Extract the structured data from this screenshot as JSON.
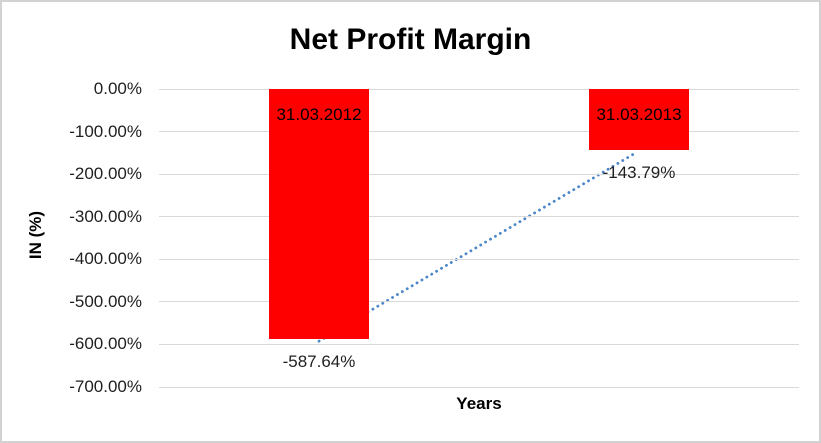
{
  "chart_data": {
    "type": "bar",
    "title": "Net Profit Margin",
    "xlabel": "Years",
    "ylabel": "IN (%)",
    "categories": [
      "31.03.2012",
      "31.03.2013"
    ],
    "values": [
      -587.64,
      -143.79
    ],
    "value_labels": [
      "-587.64%",
      "-143.79%"
    ],
    "ylim": [
      -700,
      0
    ],
    "ytick_labels": [
      "0.00%",
      "-100.00%",
      "-200.00%",
      "-300.00%",
      "-400.00%",
      "-500.00%",
      "-600.00%",
      "-700.00%"
    ],
    "grid": true,
    "legend": "none",
    "colors": {
      "bar": "#ff0000",
      "gridline": "#d9d9d9",
      "frame_border": "#d2d2d2",
      "trendline": "#4a86c8",
      "text": "#000000",
      "tick_text": "#1f1f1f"
    },
    "trendline": {
      "style": "dotted",
      "connects": "bar bottoms (data points)"
    }
  }
}
